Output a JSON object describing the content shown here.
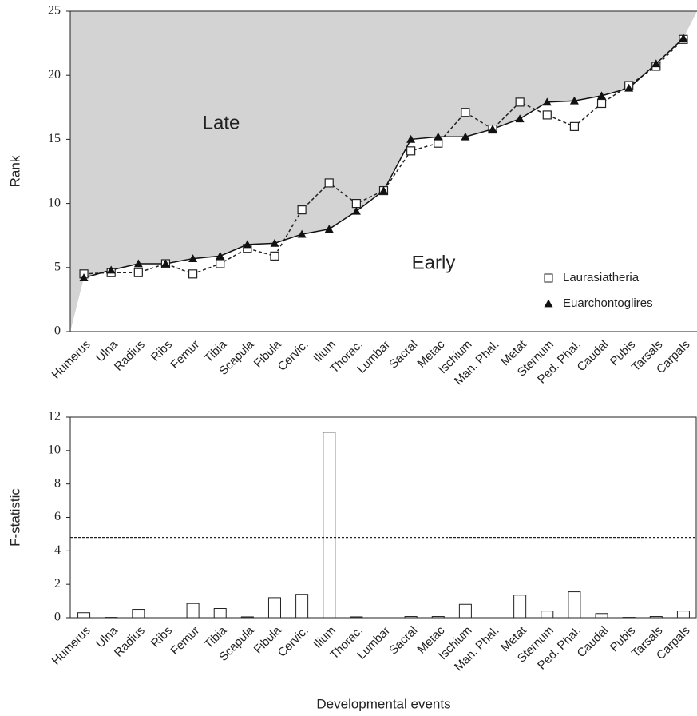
{
  "chart_data": [
    {
      "type": "line",
      "ylabel": "Rank",
      "categories": [
        "Humerus",
        "Ulna",
        "Radius",
        "Ribs",
        "Femur",
        "Tibia",
        "Scapula",
        "Fibula",
        "Cervic.",
        "Ilium",
        "Thorac.",
        "Lumbar",
        "Sacral",
        "Metac",
        "Ischium",
        "Man. Phal.",
        "Metat",
        "Sternum",
        "Ped. Phal.",
        "Caudal",
        "Pubis",
        "Tarsals",
        "Carpals"
      ],
      "series": [
        {
          "name": "Laurasiatheria",
          "color": "#222222",
          "marker": "square",
          "dash": true,
          "values": [
            4.5,
            4.6,
            4.6,
            5.3,
            4.5,
            5.3,
            6.5,
            5.9,
            9.5,
            11.6,
            10.0,
            11.0,
            14.1,
            14.7,
            17.1,
            15.8,
            17.9,
            16.9,
            16.0,
            17.8,
            19.2,
            20.7,
            22.8
          ]
        },
        {
          "name": "Euarchontoglires",
          "color": "#111111",
          "marker": "triangle",
          "dash": false,
          "values": [
            4.2,
            4.8,
            5.3,
            5.3,
            5.7,
            5.9,
            6.8,
            6.9,
            7.6,
            8.0,
            9.4,
            11.0,
            15.0,
            15.2,
            15.2,
            15.8,
            16.6,
            17.9,
            18.0,
            18.4,
            19.0,
            20.9,
            22.9
          ]
        }
      ],
      "annotations": [
        "Late",
        "Early"
      ],
      "ylim": [
        0,
        25
      ],
      "yticks": [
        0,
        5,
        10,
        15,
        20,
        25
      ],
      "legend": "lower right",
      "shade": "#d3d3d3"
    },
    {
      "type": "bar",
      "ylabel": "F-statistic",
      "xlabel": "Developmental events",
      "categories": [
        "Humerus",
        "Ulna",
        "Radius",
        "Ribs",
        "Femur",
        "Tibia",
        "Scapula",
        "Fibula",
        "Cervic.",
        "Ilium",
        "Thorac.",
        "Lumbar",
        "Sacral",
        "Metac",
        "Ischium",
        "Man. Phal.",
        "Metat",
        "Sternum",
        "Ped. Phal.",
        "Caudal",
        "Pubis",
        "Tarsals",
        "Carpals"
      ],
      "values": [
        0.3,
        0.02,
        0.5,
        0,
        0.85,
        0.55,
        0.05,
        1.2,
        1.4,
        11.1,
        0.05,
        0,
        0.07,
        0.07,
        0.8,
        0,
        1.35,
        0.4,
        1.55,
        0.25,
        0.02,
        0.07,
        0.4
      ],
      "color": "#ffffff",
      "threshold": 4.8,
      "ylim": [
        0,
        12
      ],
      "yticks": [
        0,
        2,
        4,
        6,
        8,
        10,
        12
      ]
    }
  ]
}
